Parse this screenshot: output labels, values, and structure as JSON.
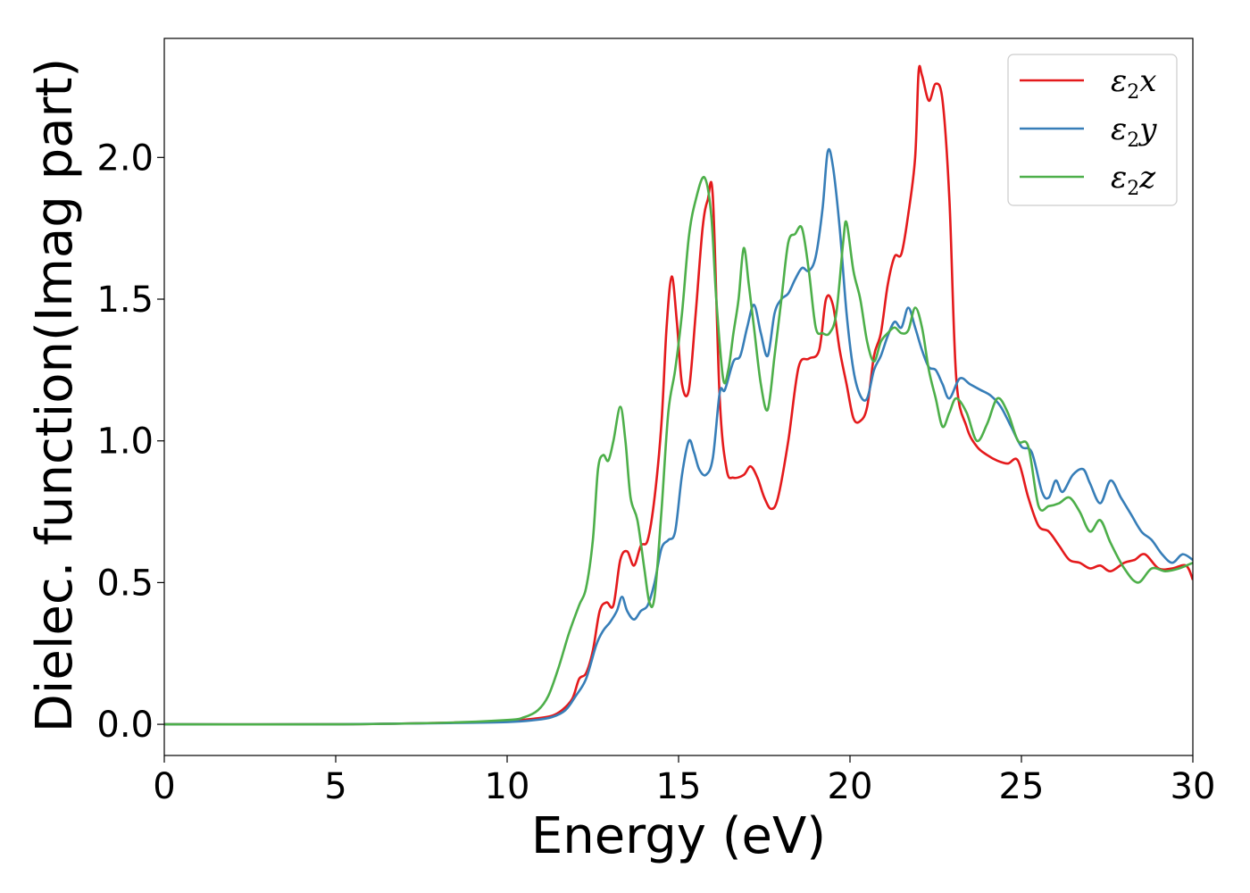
{
  "chart_data": {
    "type": "line",
    "xlabel": "Energy (eV)",
    "ylabel": "Dielec. function(Imag part)",
    "xlim": [
      0,
      30
    ],
    "ylim": [
      -0.11,
      2.42
    ],
    "xticks": [
      0,
      5,
      10,
      15,
      20,
      25,
      30
    ],
    "xtick_labels": [
      "0",
      "5",
      "10",
      "15",
      "20",
      "25",
      "30"
    ],
    "yticks": [
      0.0,
      0.5,
      1.0,
      1.5,
      2.0
    ],
    "ytick_labels": [
      "0.0",
      "0.5",
      "1.0",
      "1.5",
      "2.0"
    ],
    "grid": false,
    "legend_position": "top-right",
    "series": [
      {
        "legend": {
          "base": "ε",
          "sub": "2",
          "suffix": "x"
        },
        "color": "#e41a1c",
        "x": [
          0,
          5,
          8,
          10,
          10.8,
          11.3,
          11.6,
          11.9,
          12.1,
          12.3,
          12.5,
          12.7,
          12.9,
          13.1,
          13.3,
          13.5,
          13.7,
          13.9,
          14.1,
          14.3,
          14.5,
          14.65,
          14.8,
          14.95,
          15.1,
          15.3,
          15.5,
          15.7,
          15.85,
          16.0,
          16.2,
          16.4,
          16.6,
          16.9,
          17.1,
          17.3,
          17.5,
          17.7,
          17.9,
          18.2,
          18.5,
          18.8,
          19.1,
          19.3,
          19.5,
          19.7,
          19.9,
          20.1,
          20.3,
          20.5,
          20.7,
          20.9,
          21.1,
          21.3,
          21.5,
          21.7,
          21.9,
          22.0,
          22.1,
          22.3,
          22.5,
          22.7,
          22.9,
          23.1,
          23.4,
          23.7,
          24.0,
          24.3,
          24.6,
          24.9,
          25.2,
          25.5,
          25.8,
          26.1,
          26.4,
          26.7,
          27.0,
          27.3,
          27.6,
          28.0,
          28.3,
          28.6,
          29.0,
          29.4,
          29.8,
          30.0
        ],
        "y": [
          0.0,
          0.0,
          0.005,
          0.012,
          0.02,
          0.03,
          0.05,
          0.09,
          0.16,
          0.18,
          0.26,
          0.4,
          0.43,
          0.42,
          0.58,
          0.61,
          0.56,
          0.63,
          0.65,
          0.8,
          1.06,
          1.4,
          1.58,
          1.42,
          1.2,
          1.18,
          1.45,
          1.75,
          1.85,
          1.86,
          1.15,
          0.9,
          0.87,
          0.88,
          0.91,
          0.87,
          0.8,
          0.76,
          0.8,
          1.0,
          1.26,
          1.29,
          1.32,
          1.5,
          1.48,
          1.32,
          1.2,
          1.08,
          1.07,
          1.12,
          1.3,
          1.38,
          1.55,
          1.65,
          1.66,
          1.8,
          2.0,
          2.3,
          2.29,
          2.2,
          2.26,
          2.2,
          1.85,
          1.22,
          1.05,
          0.98,
          0.95,
          0.93,
          0.92,
          0.93,
          0.8,
          0.7,
          0.68,
          0.63,
          0.58,
          0.57,
          0.55,
          0.56,
          0.54,
          0.57,
          0.58,
          0.6,
          0.55,
          0.55,
          0.56,
          0.51
        ]
      },
      {
        "legend": {
          "base": "ε",
          "sub": "2",
          "suffix": "y"
        },
        "color": "#377eb8",
        "x": [
          0,
          5,
          8,
          10,
          10.8,
          11.3,
          11.7,
          12.0,
          12.3,
          12.6,
          12.8,
          13.0,
          13.2,
          13.35,
          13.5,
          13.7,
          13.9,
          14.1,
          14.3,
          14.5,
          14.7,
          14.9,
          15.1,
          15.3,
          15.45,
          15.6,
          15.8,
          16.0,
          16.2,
          16.35,
          16.6,
          16.8,
          17.0,
          17.2,
          17.4,
          17.6,
          17.8,
          18.0,
          18.2,
          18.4,
          18.6,
          18.8,
          19.0,
          19.2,
          19.35,
          19.5,
          19.7,
          19.9,
          20.1,
          20.3,
          20.5,
          20.7,
          20.9,
          21.1,
          21.3,
          21.5,
          21.7,
          21.9,
          22.1,
          22.3,
          22.5,
          22.7,
          22.9,
          23.2,
          23.5,
          23.8,
          24.1,
          24.4,
          24.7,
          25.0,
          25.3,
          25.6,
          25.8,
          26.0,
          26.2,
          26.5,
          26.8,
          27.0,
          27.3,
          27.6,
          27.9,
          28.2,
          28.5,
          28.8,
          29.1,
          29.4,
          29.7,
          30.0
        ],
        "y": [
          0.0,
          0.0,
          0.004,
          0.008,
          0.015,
          0.025,
          0.05,
          0.1,
          0.16,
          0.28,
          0.33,
          0.36,
          0.4,
          0.45,
          0.4,
          0.37,
          0.4,
          0.42,
          0.5,
          0.62,
          0.65,
          0.68,
          0.88,
          1.0,
          0.96,
          0.9,
          0.88,
          0.94,
          1.17,
          1.18,
          1.28,
          1.3,
          1.4,
          1.48,
          1.38,
          1.3,
          1.45,
          1.5,
          1.52,
          1.57,
          1.61,
          1.6,
          1.65,
          1.82,
          2.02,
          1.97,
          1.75,
          1.45,
          1.25,
          1.16,
          1.15,
          1.25,
          1.3,
          1.37,
          1.42,
          1.4,
          1.47,
          1.4,
          1.32,
          1.26,
          1.25,
          1.2,
          1.15,
          1.22,
          1.2,
          1.18,
          1.16,
          1.12,
          1.05,
          0.98,
          0.96,
          0.82,
          0.8,
          0.86,
          0.82,
          0.88,
          0.9,
          0.85,
          0.78,
          0.86,
          0.8,
          0.74,
          0.68,
          0.65,
          0.6,
          0.57,
          0.6,
          0.58
        ]
      },
      {
        "legend": {
          "base": "ε",
          "sub": "2",
          "suffix": "z"
        },
        "color": "#4daf4a",
        "x": [
          0,
          5,
          8,
          10,
          10.5,
          10.9,
          11.2,
          11.5,
          11.8,
          12.1,
          12.3,
          12.5,
          12.65,
          12.8,
          12.95,
          13.1,
          13.3,
          13.45,
          13.6,
          13.8,
          14.0,
          14.15,
          14.3,
          14.5,
          14.7,
          14.9,
          15.1,
          15.3,
          15.5,
          15.75,
          15.95,
          16.1,
          16.3,
          16.45,
          16.6,
          16.75,
          16.9,
          17.05,
          17.2,
          17.4,
          17.6,
          17.8,
          18.0,
          18.2,
          18.4,
          18.6,
          18.8,
          19.0,
          19.2,
          19.4,
          19.6,
          19.8,
          19.9,
          20.1,
          20.3,
          20.5,
          20.7,
          20.9,
          21.1,
          21.3,
          21.5,
          21.7,
          21.9,
          22.1,
          22.3,
          22.5,
          22.7,
          22.9,
          23.1,
          23.4,
          23.7,
          24.0,
          24.3,
          24.6,
          24.9,
          25.2,
          25.5,
          25.8,
          26.1,
          26.4,
          26.7,
          27.0,
          27.3,
          27.6,
          28.0,
          28.4,
          28.8,
          29.2,
          29.6,
          30.0
        ],
        "y": [
          0.0,
          0.0,
          0.005,
          0.015,
          0.025,
          0.05,
          0.1,
          0.2,
          0.32,
          0.42,
          0.48,
          0.65,
          0.9,
          0.95,
          0.93,
          1.0,
          1.12,
          1.0,
          0.8,
          0.72,
          0.55,
          0.43,
          0.45,
          0.75,
          1.1,
          1.25,
          1.45,
          1.72,
          1.85,
          1.93,
          1.8,
          1.5,
          1.22,
          1.25,
          1.38,
          1.5,
          1.68,
          1.55,
          1.4,
          1.2,
          1.11,
          1.3,
          1.5,
          1.7,
          1.73,
          1.75,
          1.6,
          1.4,
          1.38,
          1.38,
          1.45,
          1.7,
          1.77,
          1.6,
          1.5,
          1.35,
          1.28,
          1.35,
          1.38,
          1.4,
          1.38,
          1.39,
          1.47,
          1.4,
          1.25,
          1.15,
          1.05,
          1.1,
          1.15,
          1.1,
          1.0,
          1.06,
          1.15,
          1.1,
          1.0,
          0.98,
          0.77,
          0.77,
          0.78,
          0.8,
          0.75,
          0.68,
          0.72,
          0.64,
          0.55,
          0.5,
          0.55,
          0.54,
          0.55,
          0.57
        ]
      }
    ]
  }
}
